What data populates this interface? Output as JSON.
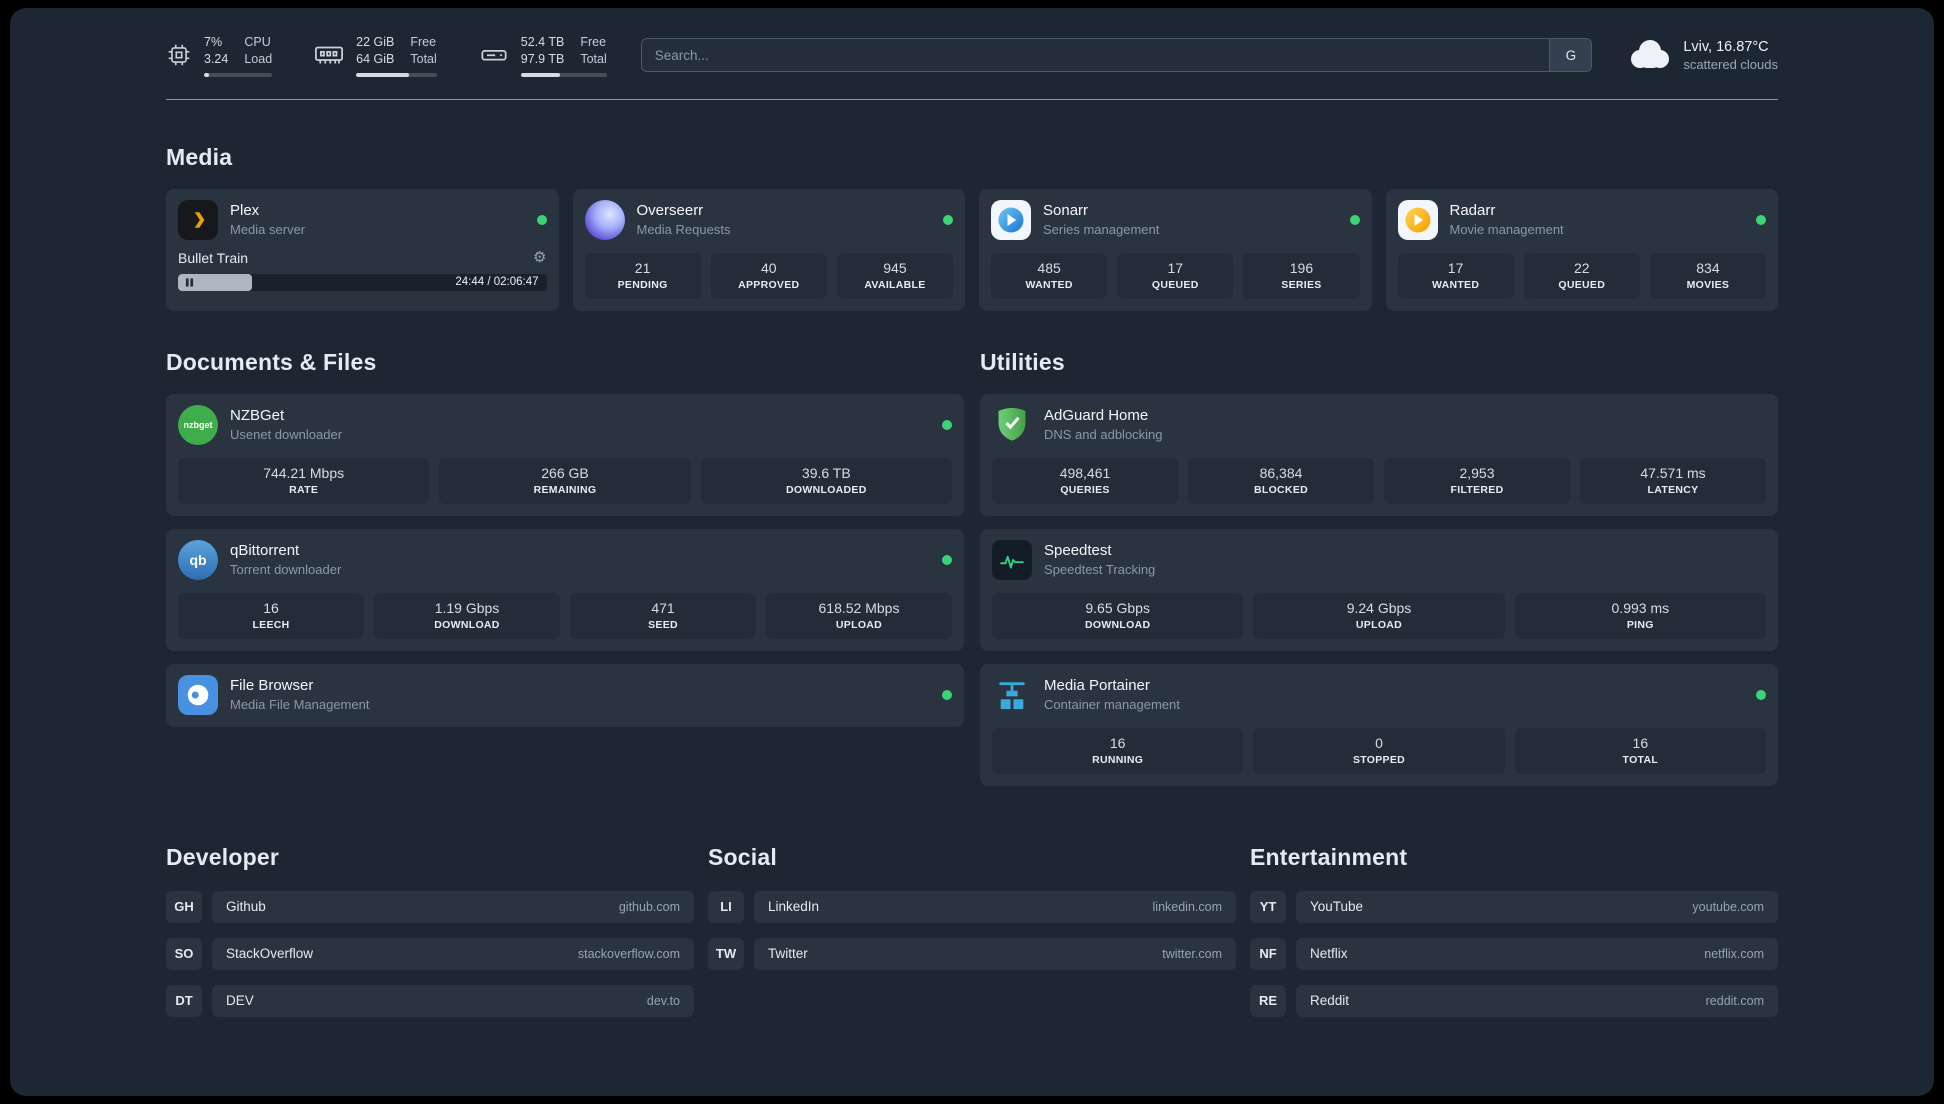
{
  "topbar": {
    "cpu": {
      "icon": "cpu-chip-icon",
      "value_top": "7%",
      "value_bottom": "3.24",
      "label_top": "CPU",
      "label_bottom": "Load",
      "bar_percent": 7
    },
    "memory": {
      "icon": "memory-icon",
      "value_top": "22 GiB",
      "value_bottom": "64 GiB",
      "label_top": "Free",
      "label_bottom": "Total",
      "bar_percent": 66
    },
    "disk": {
      "icon": "hard-drive-icon",
      "value_top": "52.4 TB",
      "value_bottom": "97.9 TB",
      "label_top": "Free",
      "label_bottom": "Total",
      "bar_percent": 46
    },
    "search": {
      "placeholder": "Search...",
      "engine_button": "G"
    },
    "weather": {
      "icon": "cloud-icon",
      "location": "Lviv, 16.87°C",
      "condition": "scattered clouds"
    }
  },
  "sections": {
    "media": {
      "title": "Media",
      "services": [
        {
          "name": "Plex",
          "subtitle": "Media server",
          "icon": "plex-icon",
          "status": "online",
          "now_playing": {
            "title": "Bullet Train",
            "time_display": "24:44 / 02:06:47",
            "progress_percent": 20
          }
        },
        {
          "name": "Overseerr",
          "subtitle": "Media Requests",
          "icon": "overseerr-icon",
          "status": "online",
          "stats": [
            {
              "value": "21",
              "label": "PENDING"
            },
            {
              "value": "40",
              "label": "APPROVED"
            },
            {
              "value": "945",
              "label": "AVAILABLE"
            }
          ]
        },
        {
          "name": "Sonarr",
          "subtitle": "Series management",
          "icon": "sonarr-icon",
          "status": "online",
          "stats": [
            {
              "value": "485",
              "label": "WANTED"
            },
            {
              "value": "17",
              "label": "QUEUED"
            },
            {
              "value": "196",
              "label": "SERIES"
            }
          ]
        },
        {
          "name": "Radarr",
          "subtitle": "Movie management",
          "icon": "radarr-icon",
          "status": "online",
          "stats": [
            {
              "value": "17",
              "label": "WANTED"
            },
            {
              "value": "22",
              "label": "QUEUED"
            },
            {
              "value": "834",
              "label": "MOVIES"
            }
          ]
        }
      ]
    },
    "documents": {
      "title": "Documents & Files",
      "services": [
        {
          "name": "NZBGet",
          "subtitle": "Usenet downloader",
          "icon": "nzbget-icon",
          "icon_text": "nzbget",
          "status": "online",
          "stats": [
            {
              "value": "744.21 Mbps",
              "label": "RATE"
            },
            {
              "value": "266 GB",
              "label": "REMAINING"
            },
            {
              "value": "39.6 TB",
              "label": "DOWNLOADED"
            }
          ]
        },
        {
          "name": "qBittorrent",
          "subtitle": "Torrent downloader",
          "icon": "qbittorrent-icon",
          "icon_text": "qb",
          "status": "online",
          "stats": [
            {
              "value": "16",
              "label": "LEECH"
            },
            {
              "value": "1.19 Gbps",
              "label": "DOWNLOAD"
            },
            {
              "value": "471",
              "label": "SEED"
            },
            {
              "value": "618.52 Mbps",
              "label": "UPLOAD"
            }
          ]
        },
        {
          "name": "File Browser",
          "subtitle": "Media File Management",
          "icon": "filebrowser-icon",
          "status": "online"
        }
      ]
    },
    "utilities": {
      "title": "Utilities",
      "services": [
        {
          "name": "AdGuard Home",
          "subtitle": "DNS and adblocking",
          "icon": "adguard-shield-icon",
          "stats": [
            {
              "value": "498,461",
              "label": "QUERIES"
            },
            {
              "value": "86,384",
              "label": "BLOCKED"
            },
            {
              "value": "2,953",
              "label": "FILTERED"
            },
            {
              "value": "47.571 ms",
              "label": "LATENCY"
            }
          ]
        },
        {
          "name": "Speedtest",
          "subtitle": "Speedtest Tracking",
          "icon": "speedtest-graph-icon",
          "stats": [
            {
              "value": "9.65 Gbps",
              "label": "DOWNLOAD"
            },
            {
              "value": "9.24 Gbps",
              "label": "UPLOAD"
            },
            {
              "value": "0.993 ms",
              "label": "PING"
            }
          ]
        },
        {
          "name": "Media Portainer",
          "subtitle": "Container management",
          "icon": "portainer-crane-icon",
          "status": "online",
          "stats": [
            {
              "value": "16",
              "label": "RUNNING"
            },
            {
              "value": "0",
              "label": "STOPPED"
            },
            {
              "value": "16",
              "label": "TOTAL"
            }
          ]
        }
      ]
    }
  },
  "bookmarks": [
    {
      "title": "Developer",
      "items": [
        {
          "abbr": "GH",
          "name": "Github",
          "url": "github.com"
        },
        {
          "abbr": "SO",
          "name": "StackOverflow",
          "url": "stackoverflow.com"
        },
        {
          "abbr": "DT",
          "name": "DEV",
          "url": "dev.to"
        }
      ]
    },
    {
      "title": "Social",
      "items": [
        {
          "abbr": "LI",
          "name": "LinkedIn",
          "url": "linkedin.com"
        },
        {
          "abbr": "TW",
          "name": "Twitter",
          "url": "twitter.com"
        }
      ]
    },
    {
      "title": "Entertainment",
      "items": [
        {
          "abbr": "YT",
          "name": "YouTube",
          "url": "youtube.com"
        },
        {
          "abbr": "NF",
          "name": "Netflix",
          "url": "netflix.com"
        },
        {
          "abbr": "RE",
          "name": "Reddit",
          "url": "reddit.com"
        }
      ]
    }
  ],
  "colors": {
    "background": "#1d2734",
    "card": "#2a3340",
    "stat_box": "#232c39",
    "status_online": "#3dd475",
    "speedtest_accent": "#2fd181",
    "plex_gold": "#e5a00d",
    "portainer_blue": "#3aa8d8"
  }
}
